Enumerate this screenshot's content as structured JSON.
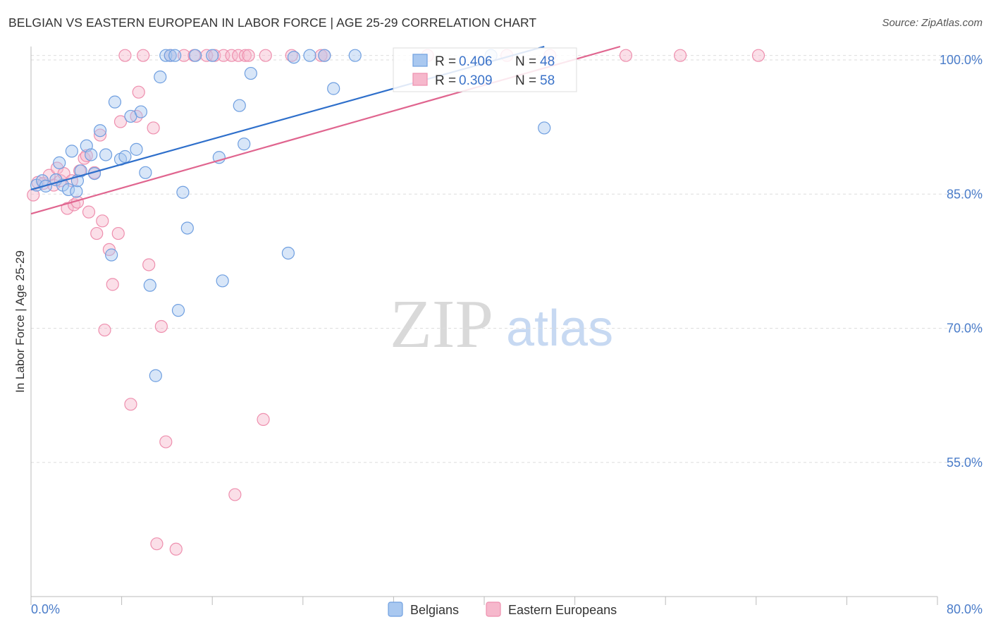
{
  "title": "BELGIAN VS EASTERN EUROPEAN IN LABOR FORCE | AGE 25-29 CORRELATION CHART",
  "source": "Source: ZipAtlas.com",
  "watermark": {
    "zip": "ZIP",
    "atlas": "atlas"
  },
  "colors": {
    "blue_fill": "#a9c8f0",
    "blue_stroke": "#6f9fe0",
    "blue_line": "#2e6fcb",
    "pink_fill": "#f6b8cc",
    "pink_stroke": "#ee8fae",
    "pink_line": "#e0658f",
    "tick_text": "#4a7cc9",
    "grid": "#dddddd"
  },
  "chart_data": {
    "type": "scatter",
    "title": "BELGIAN VS EASTERN EUROPEAN IN LABOR FORCE | AGE 25-29 CORRELATION CHART",
    "xlabel": "",
    "ylabel": "In Labor Force | Age 25-29",
    "xlim": [
      0,
      80
    ],
    "ylim": [
      40,
      101.5
    ],
    "x_tick_labels": [
      "0.0%",
      "80.0%"
    ],
    "y_ticks": [
      55,
      70,
      85,
      100
    ],
    "y_tick_labels": [
      "55.0%",
      "70.0%",
      "85.0%",
      "100.0%"
    ],
    "legend": {
      "r_label": "R =",
      "n_label": "N =",
      "entries": [
        {
          "name": "Belgians",
          "r": "0.406",
          "n": "48"
        },
        {
          "name": "Eastern Europeans",
          "r": "0.309",
          "n": "58"
        }
      ]
    },
    "series": [
      {
        "name": "Belgians",
        "trend": {
          "x": [
            0,
            45.3
          ],
          "y": [
            85.5,
            101.5
          ]
        },
        "points": [
          [
            0.5,
            86.0
          ],
          [
            1.0,
            86.5
          ],
          [
            1.3,
            85.9
          ],
          [
            2.2,
            86.6
          ],
          [
            2.5,
            88.5
          ],
          [
            2.8,
            86.0
          ],
          [
            3.3,
            85.5
          ],
          [
            3.6,
            89.8
          ],
          [
            4.0,
            85.3
          ],
          [
            4.1,
            86.5
          ],
          [
            4.4,
            87.6
          ],
          [
            4.9,
            90.4
          ],
          [
            5.3,
            89.4
          ],
          [
            5.6,
            87.3
          ],
          [
            6.1,
            92.1
          ],
          [
            6.6,
            89.4
          ],
          [
            7.1,
            78.2
          ],
          [
            7.4,
            95.3
          ],
          [
            7.9,
            88.9
          ],
          [
            8.3,
            89.2
          ],
          [
            8.8,
            93.7
          ],
          [
            9.3,
            90.0
          ],
          [
            9.7,
            94.2
          ],
          [
            10.1,
            87.4
          ],
          [
            10.5,
            74.8
          ],
          [
            11.0,
            64.7
          ],
          [
            11.4,
            98.1
          ],
          [
            11.9,
            100.5
          ],
          [
            12.3,
            100.5
          ],
          [
            12.7,
            100.5
          ],
          [
            13.0,
            72.0
          ],
          [
            13.4,
            85.2
          ],
          [
            13.8,
            81.2
          ],
          [
            14.5,
            100.5
          ],
          [
            16.0,
            100.5
          ],
          [
            16.6,
            89.1
          ],
          [
            16.9,
            75.3
          ],
          [
            18.4,
            94.9
          ],
          [
            18.8,
            90.6
          ],
          [
            19.4,
            98.5
          ],
          [
            22.7,
            78.4
          ],
          [
            23.2,
            100.3
          ],
          [
            24.6,
            100.5
          ],
          [
            25.9,
            100.5
          ],
          [
            26.7,
            96.8
          ],
          [
            28.6,
            100.5
          ],
          [
            40.6,
            100.5
          ],
          [
            45.3,
            92.4
          ]
        ]
      },
      {
        "name": "Eastern Europeans",
        "trend": {
          "x": [
            0,
            52.0
          ],
          "y": [
            82.8,
            101.5
          ]
        },
        "points": [
          [
            0.2,
            84.9
          ],
          [
            0.6,
            86.3
          ],
          [
            1.1,
            86.2
          ],
          [
            1.6,
            87.1
          ],
          [
            2.0,
            86.0
          ],
          [
            2.3,
            87.9
          ],
          [
            2.6,
            86.5
          ],
          [
            2.9,
            87.3
          ],
          [
            3.2,
            83.4
          ],
          [
            3.6,
            86.5
          ],
          [
            3.8,
            83.8
          ],
          [
            4.1,
            84.1
          ],
          [
            4.3,
            87.6
          ],
          [
            4.7,
            89.0
          ],
          [
            4.9,
            89.3
          ],
          [
            5.1,
            83.0
          ],
          [
            5.6,
            87.4
          ],
          [
            5.8,
            80.6
          ],
          [
            6.1,
            91.6
          ],
          [
            6.3,
            82.0
          ],
          [
            6.5,
            69.8
          ],
          [
            6.9,
            78.8
          ],
          [
            7.2,
            74.9
          ],
          [
            7.7,
            80.6
          ],
          [
            7.9,
            93.1
          ],
          [
            8.3,
            100.5
          ],
          [
            8.8,
            61.5
          ],
          [
            9.3,
            93.7
          ],
          [
            9.5,
            96.4
          ],
          [
            9.9,
            100.5
          ],
          [
            10.4,
            77.1
          ],
          [
            10.8,
            92.4
          ],
          [
            11.1,
            45.9
          ],
          [
            11.5,
            70.2
          ],
          [
            11.9,
            57.3
          ],
          [
            12.3,
            100.5
          ],
          [
            12.8,
            45.3
          ],
          [
            13.5,
            100.5
          ],
          [
            14.4,
            100.5
          ],
          [
            15.5,
            100.5
          ],
          [
            16.2,
            100.5
          ],
          [
            17.0,
            100.5
          ],
          [
            17.7,
            100.5
          ],
          [
            18.0,
            51.4
          ],
          [
            18.3,
            100.5
          ],
          [
            18.9,
            100.5
          ],
          [
            19.2,
            100.5
          ],
          [
            20.5,
            59.8
          ],
          [
            20.7,
            100.5
          ],
          [
            23.0,
            100.5
          ],
          [
            25.6,
            100.5
          ],
          [
            25.9,
            100.5
          ],
          [
            35.0,
            100.5
          ],
          [
            42.0,
            100.5
          ],
          [
            45.8,
            100.5
          ],
          [
            52.5,
            100.5
          ],
          [
            57.3,
            100.5
          ],
          [
            64.2,
            100.5
          ]
        ]
      }
    ]
  }
}
